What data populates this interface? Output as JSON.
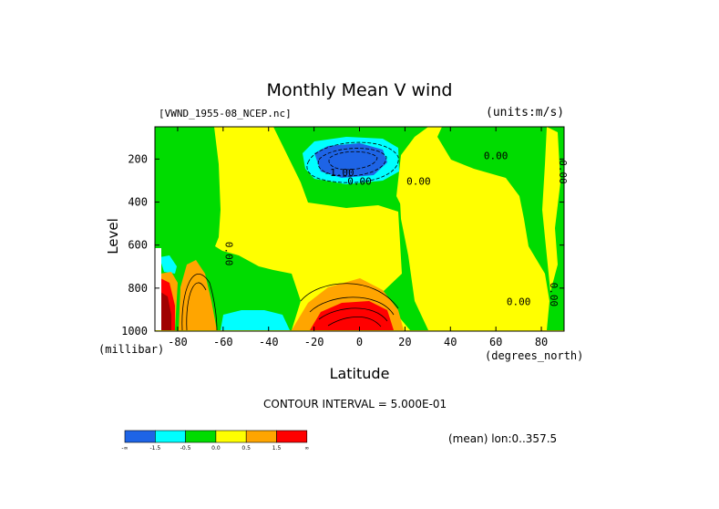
{
  "chart_data": {
    "type": "heatmap",
    "title": "Monthly Mean V wind",
    "file_label": "[VWND_1955-08_NCEP.nc]",
    "units_label": "(units:m/s)",
    "xlabel": "Latitude",
    "x_units": "(degrees_north)",
    "ylabel": "Level",
    "y_units": "(millibar)",
    "xlim": [
      -90,
      90
    ],
    "ylim": [
      1000,
      50
    ],
    "y_inverted": true,
    "x_ticks": [
      -80,
      -60,
      -40,
      -20,
      0,
      20,
      40,
      60,
      80
    ],
    "y_ticks": [
      200,
      400,
      600,
      800,
      1000
    ],
    "contour_interval_text": "CONTOUR INTERVAL = 5.000E-01",
    "mean_text": "(mean) lon:0..357.5",
    "contour_labels": [
      "0.00",
      "-1.00"
    ],
    "colorbar": {
      "colors": [
        "#1e64e6",
        "#00ffff",
        "#00dc00",
        "#ffff00",
        "#ffa500",
        "#ff0000"
      ],
      "tick_labels": [
        "-∞",
        "-1.5",
        "-0.5",
        "0.0",
        "0.5",
        "1.5",
        "∞"
      ]
    },
    "regions": [
      {
        "level": "negative-strong",
        "lat_range": [
          -23,
          12
        ],
        "level_range": [
          120,
          300
        ],
        "value": -2.0
      },
      {
        "level": "negative",
        "lat_range": [
          -60,
          -30
        ],
        "level_range": [
          900,
          1000
        ],
        "value": -0.6
      },
      {
        "level": "negative",
        "lat_range": [
          -88,
          -84
        ],
        "level_range": [
          700,
          780
        ],
        "value": -0.6
      },
      {
        "level": "positive-strong",
        "lat_range": [
          -20,
          15
        ],
        "level_range": [
          850,
          1000
        ],
        "value": 2.5
      },
      {
        "level": "positive",
        "lat_range": [
          -80,
          -65
        ],
        "level_range": [
          640,
          1000
        ],
        "value": 1.0
      },
      {
        "level": "positive-strong",
        "lat_range": [
          -90,
          -80
        ],
        "level_range": [
          780,
          1000
        ],
        "value": 2.0
      }
    ]
  }
}
